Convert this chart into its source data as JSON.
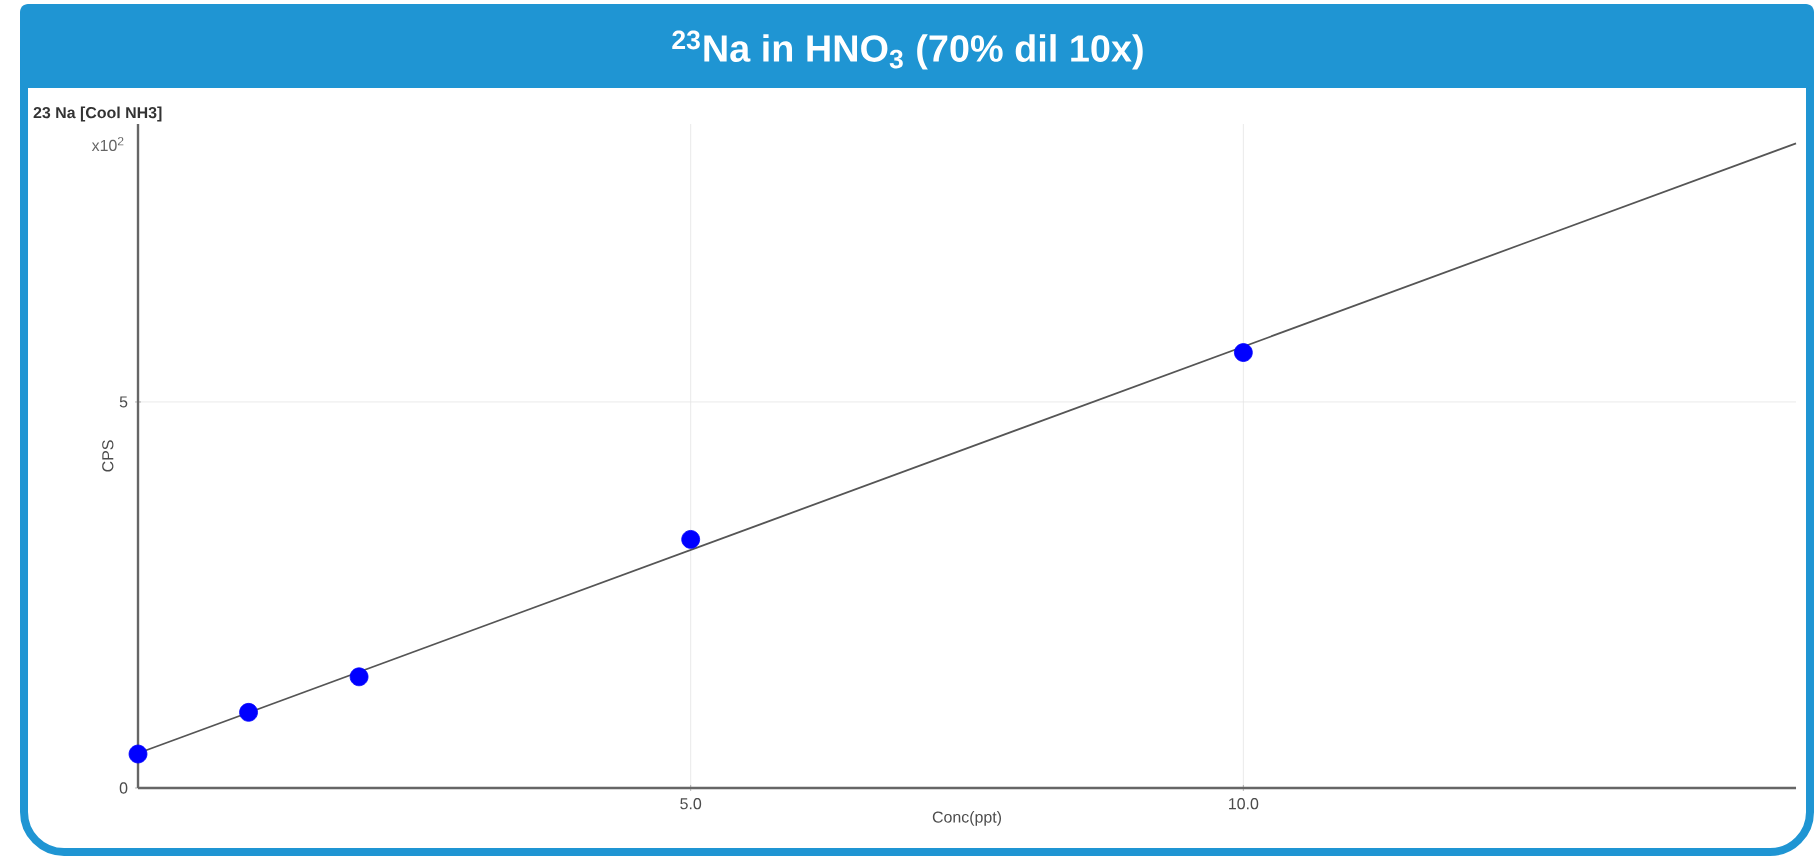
{
  "chart_data": {
    "type": "scatter",
    "title": "$^{23}$Na in HNO$_{3}$ (70% dil 10x)",
    "subtitle": "23 Na [Cool NH3]",
    "xlabel": "Conc(ppt)",
    "ylabel": "CPS",
    "annotations": [
      "x10$^{2}$"
    ],
    "xlim": [
      0,
      15
    ],
    "ylim": [
      0,
      8.6
    ],
    "xticks": [
      {
        "value": 5,
        "label": "5.0"
      },
      {
        "value": 10,
        "label": "10.0"
      }
    ],
    "yticks": [
      0,
      5
    ],
    "grid": true,
    "series": [
      {
        "type": "line",
        "color": "#555555",
        "line_style": "solid",
        "marker": "none",
        "x": [
          0,
          15
        ],
        "values": [
          0.45,
          8.35
        ]
      },
      {
        "color": "#0000ff",
        "marker": "circle",
        "x": [
          0,
          1,
          2,
          5,
          10
        ],
        "values": [
          0.44,
          0.98,
          1.44,
          3.22,
          5.64
        ]
      }
    ]
  }
}
